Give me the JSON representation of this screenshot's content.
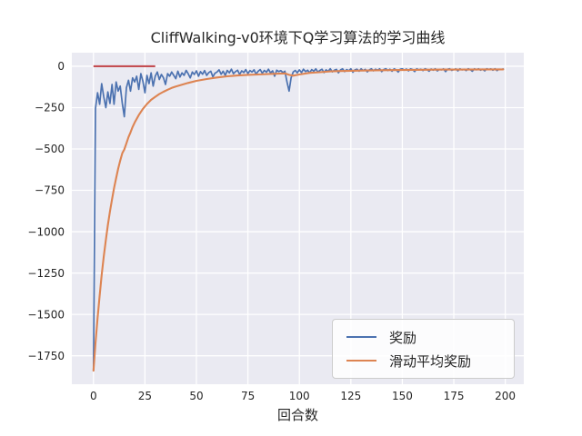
{
  "chart_data": {
    "type": "line",
    "title": "CliffWalking-v0环境下Q学习算法的学习曲线",
    "xlabel": "回合数",
    "ylabel": "",
    "xticks": [
      0,
      25,
      50,
      75,
      100,
      125,
      150,
      175,
      200
    ],
    "yticks": [
      0,
      -250,
      -500,
      -750,
      -1000,
      -1250,
      -1500,
      -1750
    ],
    "xlim": [
      -10.5,
      209
    ],
    "ylim": [
      -1922,
      82
    ],
    "grid": true,
    "legend_position": "lower right",
    "series": [
      {
        "name": "奖励",
        "color": "#4C72B0",
        "x_start": 0,
        "x_step": 1,
        "values": [
          -1840,
          -255,
          -160,
          -230,
          -105,
          -185,
          -250,
          -155,
          -225,
          -110,
          -230,
          -95,
          -150,
          -120,
          -225,
          -305,
          -130,
          -85,
          -150,
          -70,
          -95,
          -60,
          -140,
          -45,
          -90,
          -160,
          -55,
          -105,
          -40,
          -120,
          -60,
          -35,
          -80,
          -50,
          -70,
          -110,
          -45,
          -60,
          -35,
          -55,
          -75,
          -30,
          -65,
          -40,
          -55,
          -25,
          -45,
          -70,
          -35,
          -50,
          -28,
          -60,
          -33,
          -48,
          -26,
          -55,
          -38,
          -30,
          -64,
          -42,
          -35,
          -22,
          -48,
          -30,
          -55,
          -25,
          -40,
          -18,
          -45,
          -32,
          -24,
          -50,
          -28,
          -38,
          -20,
          -44,
          -26,
          -35,
          -22,
          -48,
          -30,
          -20,
          -42,
          -25,
          -36,
          -18,
          -40,
          -28,
          -60,
          -24,
          -32,
          -26,
          -38,
          -30,
          -95,
          -150,
          -70,
          -35,
          -25,
          -40,
          -22,
          -38,
          -18,
          -32,
          -24,
          -40,
          -20,
          -30,
          -16,
          -35,
          -25,
          -18,
          -38,
          -22,
          -30,
          -15,
          -34,
          -24,
          -19,
          -40,
          -22,
          -16,
          -32,
          -20,
          -28,
          -15,
          -36,
          -22,
          -18,
          -30,
          -16,
          -26,
          -19,
          -34,
          -22,
          -15,
          -28,
          -18,
          -24,
          -16,
          -32,
          -20,
          -15,
          -26,
          -18,
          -30,
          -16,
          -22,
          -35,
          -18,
          -15,
          -24,
          -17,
          -28,
          -16,
          -20,
          -32,
          -15,
          -22,
          -18,
          -26,
          -15,
          -20,
          -30,
          -17,
          -24,
          -15,
          -28,
          -19,
          -22,
          -16,
          -32,
          -18,
          -15,
          -25,
          -20,
          -16,
          -28,
          -15,
          -22,
          -18,
          -26,
          -15,
          -20,
          -30,
          -16,
          -22,
          -15,
          -24,
          -18,
          -28,
          -15,
          -20,
          -16,
          -24,
          -15,
          -26,
          -18,
          -20,
          -17
        ]
      },
      {
        "name": "滑动平均奖励",
        "color": "#DD8452",
        "x": [
          0,
          1,
          2,
          3,
          4,
          5,
          6,
          7,
          8,
          9,
          10,
          11,
          12,
          13,
          14,
          15,
          16,
          17,
          18,
          19,
          20,
          22,
          24,
          26,
          28,
          30,
          32,
          34,
          36,
          38,
          40,
          43,
          46,
          50,
          55,
          60,
          65,
          70,
          75,
          80,
          85,
          90,
          93,
          95,
          97,
          100,
          105,
          110,
          115,
          120,
          130,
          140,
          150,
          160,
          170,
          180,
          190,
          199
        ],
        "values": [
          -1840,
          -1674,
          -1522,
          -1386,
          -1262,
          -1150,
          -1050,
          -960,
          -878,
          -804,
          -737,
          -676,
          -620,
          -570,
          -525,
          -503,
          -466,
          -428,
          -400,
          -367,
          -340,
          -295,
          -258,
          -228,
          -203,
          -185,
          -168,
          -154,
          -142,
          -131,
          -122,
          -111,
          -101,
          -88,
          -77,
          -68,
          -61,
          -56,
          -52,
          -50,
          -47,
          -45,
          -43,
          -52,
          -57,
          -50,
          -40,
          -36,
          -31,
          -29,
          -26,
          -24,
          -23,
          -21,
          -20,
          -20,
          -19,
          -19
        ]
      }
    ],
    "annotations": [
      {
        "type": "line-segment",
        "name": "reference-line",
        "color": "#C44E52",
        "x0": 0,
        "x1": 30,
        "y": 0
      }
    ]
  },
  "style": {
    "figure_bg": "#FFFFFF",
    "axes_bg": "#EAEAF2",
    "grid_color": "#FFFFFF",
    "text_color": "#262626",
    "legend_bg": "#FFFFFF",
    "legend_border": "#CCCCCC"
  }
}
